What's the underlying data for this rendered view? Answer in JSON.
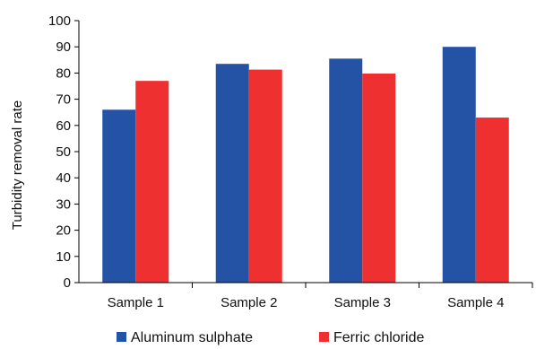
{
  "chart_data": {
    "type": "bar",
    "categories": [
      "Sample 1",
      "Sample 2",
      "Sample 3",
      "Sample 4"
    ],
    "series": [
      {
        "name": "Aluminum sulphate",
        "color": "#2453a6",
        "values": [
          66,
          83.5,
          85.5,
          90
        ]
      },
      {
        "name": "Ferric chloride",
        "color": "#ee3130",
        "values": [
          77,
          81.3,
          79.8,
          63
        ]
      }
    ],
    "title": "",
    "xlabel": "",
    "ylabel": "Turbidity removal rate",
    "ylim": [
      0,
      100
    ],
    "yticks": [
      0,
      10,
      20,
      30,
      40,
      50,
      60,
      70,
      80,
      90,
      100
    ],
    "grid": false,
    "legend": "bottom"
  }
}
